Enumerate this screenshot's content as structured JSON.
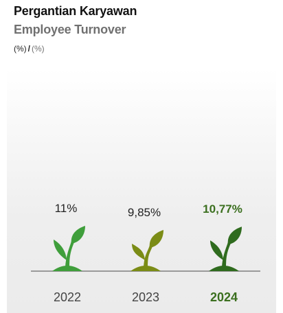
{
  "header": {
    "title": "Pergantian Karyawan",
    "subtitle": "Employee Turnover",
    "unit_id": "(%)",
    "unit_sep": "/",
    "unit_en": "(%)"
  },
  "chart_data": {
    "type": "bar",
    "categories": [
      "2022",
      "2023",
      "2024"
    ],
    "values": [
      11,
      9.85,
      10.77
    ],
    "value_labels": [
      "11%",
      "9,85%",
      "10,77%"
    ],
    "highlight_index": 2,
    "colors": [
      "#3f9e3b",
      "#7b8c16",
      "#2f6b1e"
    ],
    "label_color_default": "#222222",
    "label_color_highlight": "#3b6f1f",
    "baseline_color": "#9a9a9a",
    "grid": false,
    "legend": "none"
  }
}
